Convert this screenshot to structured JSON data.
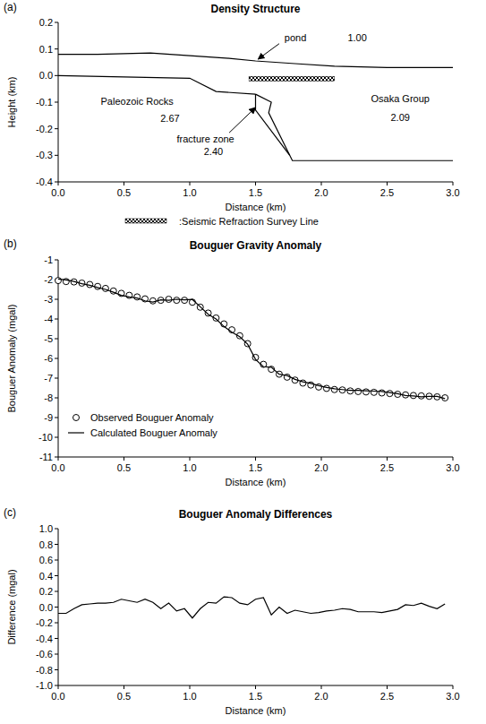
{
  "chart_data": [
    {
      "type": "section",
      "panel": "(a)",
      "title": "Density Structure",
      "xlabel": "Distance (km)",
      "ylabel": "Height (km)",
      "xlim": [
        0,
        3
      ],
      "ylim": [
        -0.4,
        0.2
      ],
      "xticks": [
        {
          "value": 0,
          "label": "0.0"
        },
        0.5,
        {
          "value": 1,
          "label": "1.0"
        },
        1.5,
        {
          "value": 2,
          "label": "2.0"
        },
        2.5,
        {
          "value": 3,
          "label": "3.0"
        }
      ],
      "yticks": [
        -0.4,
        -0.3,
        -0.2,
        -0.1,
        {
          "value": 0,
          "label": "0.0"
        },
        0.1,
        0.2
      ],
      "boundaries": [
        {
          "x": [
            0,
            0.3,
            0.7,
            1.0,
            1.3,
            1.5,
            1.8,
            2.1,
            2.5,
            3.0
          ],
          "y": [
            0.08,
            0.08,
            0.085,
            0.075,
            0.065,
            0.055,
            0.045,
            0.035,
            0.03,
            0.03
          ]
        },
        {
          "x": [
            0,
            1.0,
            1.2,
            1.5
          ],
          "y": [
            0,
            -0.01,
            -0.06,
            -0.07
          ]
        },
        {
          "x": [
            1.5,
            1.62,
            1.6,
            1.78,
            3.0
          ],
          "y": [
            -0.07,
            -0.1,
            -0.14,
            -0.32,
            -0.32
          ]
        },
        {
          "x": [
            1.5,
            1.5,
            1.76
          ],
          "y": [
            -0.07,
            -0.13,
            -0.3
          ]
        }
      ],
      "bodies": {
        "names": [
          "Paleozoic Rocks",
          "fracture zone",
          "Osaka Group",
          "pond"
        ],
        "values": [
          2.67,
          2.4,
          2.09,
          1.0
        ],
        "value_labels": [
          "2.67",
          "2.40",
          "2.09",
          "1.00"
        ]
      },
      "survey_line": {
        "label": ":Seismic Refraction Survey Line",
        "x": [
          1.45,
          2.1
        ],
        "y": 0
      }
    },
    {
      "type": "line",
      "panel": "(b)",
      "title": "Bouguer Gravity Anomaly",
      "xlabel": "Distance (km)",
      "ylabel": "Bouguer Anomaly (mgal)",
      "xlim": [
        0,
        3
      ],
      "ylim": [
        -11,
        -1
      ],
      "xticks": [
        {
          "value": 0,
          "label": "0.0"
        },
        0.5,
        {
          "value": 1,
          "label": "1.0"
        },
        1.5,
        {
          "value": 2,
          "label": "2.0"
        },
        2.5,
        {
          "value": 3,
          "label": "3.0"
        }
      ],
      "yticks": [
        -11,
        -10,
        -9,
        -8,
        -7,
        -6,
        -5,
        -4,
        -3,
        -2,
        -1
      ],
      "legend": "lower left",
      "x": [
        0.0,
        0.06,
        0.12,
        0.18,
        0.24,
        0.3,
        0.36,
        0.42,
        0.48,
        0.54,
        0.6,
        0.66,
        0.72,
        0.78,
        0.84,
        0.9,
        0.96,
        1.02,
        1.08,
        1.14,
        1.2,
        1.26,
        1.32,
        1.38,
        1.44,
        1.5,
        1.56,
        1.62,
        1.68,
        1.74,
        1.8,
        1.86,
        1.92,
        1.98,
        2.04,
        2.1,
        2.16,
        2.22,
        2.28,
        2.34,
        2.4,
        2.46,
        2.52,
        2.58,
        2.64,
        2.7,
        2.76,
        2.82,
        2.88,
        2.94
      ],
      "series": [
        {
          "name": "Observed Bouguer Anomaly",
          "type": "scatter",
          "marker": "circle",
          "color": "#000000",
          "values": [
            -2.05,
            -2.1,
            -2.12,
            -2.18,
            -2.25,
            -2.35,
            -2.45,
            -2.58,
            -2.7,
            -2.8,
            -2.88,
            -2.98,
            -3.08,
            -3.05,
            -3.0,
            -3.05,
            -3.05,
            -3.15,
            -3.4,
            -3.7,
            -3.95,
            -4.25,
            -4.55,
            -4.85,
            -5.25,
            -5.95,
            -6.3,
            -6.55,
            -6.8,
            -6.95,
            -7.1,
            -7.25,
            -7.35,
            -7.45,
            -7.52,
            -7.58,
            -7.6,
            -7.65,
            -7.68,
            -7.7,
            -7.72,
            -7.75,
            -7.78,
            -7.82,
            -7.85,
            -7.88,
            -7.9,
            -7.92,
            -7.95,
            -8.0
          ]
        },
        {
          "name": "Calculated Bouguer Anomaly",
          "type": "line",
          "line_style": "solid",
          "color": "#000000",
          "values": [
            -1.97,
            -2.02,
            -2.1,
            -2.21,
            -2.29,
            -2.4,
            -2.5,
            -2.64,
            -2.8,
            -2.88,
            -2.94,
            -3.08,
            -3.14,
            -3.03,
            -3.05,
            -3.0,
            -3.03,
            -3.01,
            -3.38,
            -3.76,
            -4.0,
            -4.38,
            -4.67,
            -4.9,
            -5.28,
            -6.05,
            -6.42,
            -6.45,
            -6.8,
            -6.87,
            -7.06,
            -7.19,
            -7.27,
            -7.38,
            -7.47,
            -7.54,
            -7.58,
            -7.62,
            -7.62,
            -7.64,
            -7.66,
            -7.68,
            -7.73,
            -7.79,
            -7.88,
            -7.9,
            -7.95,
            -7.93,
            -7.93,
            -8.04
          ]
        }
      ]
    },
    {
      "type": "line",
      "panel": "(c)",
      "title": "Bouguer Anomaly Differences",
      "xlabel": "Distance (km)",
      "ylabel": "Difference (mgal)",
      "xlim": [
        0,
        3
      ],
      "ylim": [
        -1,
        1
      ],
      "xticks": [
        {
          "value": 0,
          "label": "0.0"
        },
        0.5,
        {
          "value": 1,
          "label": "1.0"
        },
        1.5,
        {
          "value": 2,
          "label": "2.0"
        },
        2.5,
        {
          "value": 3,
          "label": "3.0"
        }
      ],
      "yticks": [
        {
          "value": -1,
          "label": "-1.0"
        },
        -0.8,
        -0.6,
        -0.4,
        -0.2,
        {
          "value": 0,
          "label": "0.0"
        },
        0.2,
        0.4,
        0.6,
        0.8,
        {
          "value": 1,
          "label": "1.0"
        }
      ],
      "x": [
        0.0,
        0.06,
        0.12,
        0.18,
        0.24,
        0.3,
        0.36,
        0.42,
        0.48,
        0.54,
        0.6,
        0.66,
        0.72,
        0.78,
        0.84,
        0.9,
        0.96,
        1.02,
        1.08,
        1.14,
        1.2,
        1.26,
        1.32,
        1.38,
        1.44,
        1.5,
        1.56,
        1.62,
        1.68,
        1.74,
        1.8,
        1.86,
        1.92,
        1.98,
        2.04,
        2.1,
        2.16,
        2.22,
        2.28,
        2.34,
        2.4,
        2.46,
        2.52,
        2.58,
        2.64,
        2.7,
        2.76,
        2.82,
        2.88,
        2.94
      ],
      "series": [
        {
          "type": "line",
          "line_style": "solid",
          "color": "#000000",
          "values": [
            -0.08,
            -0.08,
            -0.02,
            0.03,
            0.04,
            0.05,
            0.05,
            0.06,
            0.1,
            0.08,
            0.06,
            0.1,
            0.06,
            -0.02,
            0.05,
            -0.05,
            -0.02,
            -0.14,
            -0.02,
            0.06,
            0.05,
            0.13,
            0.12,
            0.05,
            0.03,
            0.1,
            0.12,
            -0.1,
            0.0,
            -0.08,
            -0.04,
            -0.06,
            -0.08,
            -0.07,
            -0.05,
            -0.04,
            -0.02,
            -0.03,
            -0.06,
            -0.06,
            -0.06,
            -0.07,
            -0.05,
            -0.03,
            0.03,
            0.02,
            0.05,
            0.01,
            -0.02,
            0.04
          ]
        }
      ]
    }
  ]
}
